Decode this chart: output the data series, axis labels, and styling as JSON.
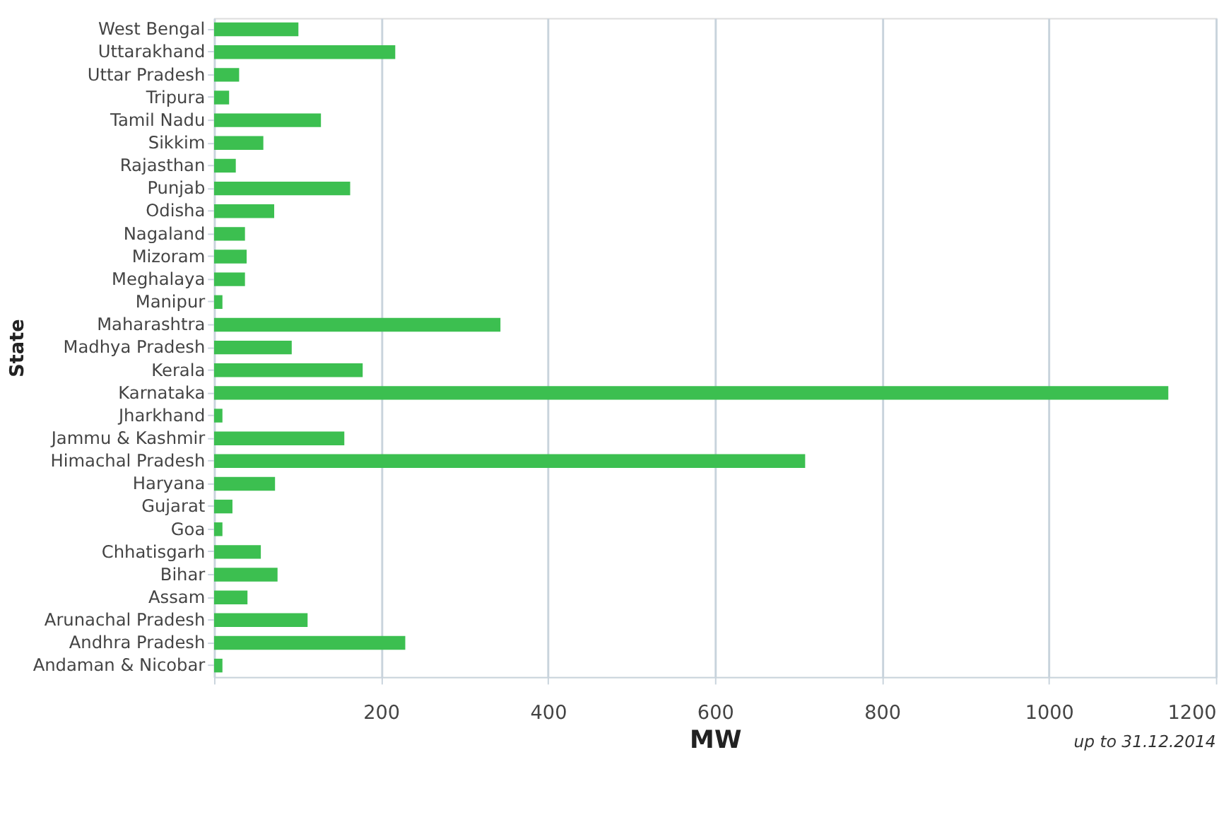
{
  "chart_data": {
    "type": "bar",
    "orientation": "horizontal",
    "xlabel": "MW",
    "ylabel": "State",
    "categories": [
      "West Bengal",
      "Uttarakhand",
      "Uttar Pradesh",
      "Tripura",
      "Tamil Nadu",
      "Sikkim",
      "Rajasthan",
      "Punjab",
      "Odisha",
      "Nagaland",
      "Mizoram",
      "Meghalaya",
      "Manipur",
      "Maharashtra",
      "Madhya Pradesh",
      "Kerala",
      "Karnataka",
      "Jharkhand",
      "Jammu & Kashmir",
      "Himachal Pradesh",
      "Haryana",
      "Gujarat",
      "Goa",
      "Chhatisgarh",
      "Bihar",
      "Assam",
      "Arunachal Pradesh",
      "Andhra Pradesh",
      "Andaman & Nicobar"
    ],
    "values": [
      101,
      217,
      30,
      18,
      128,
      59,
      26,
      163,
      72,
      37,
      39,
      37,
      10,
      343,
      93,
      178,
      1143,
      10,
      156,
      708,
      73,
      22,
      10,
      56,
      76,
      40,
      112,
      229,
      10
    ],
    "color": "#3cbf50",
    "xlim": [
      0,
      1200
    ],
    "xticks": [
      {
        "value": 0,
        "label": null
      },
      200,
      400,
      600,
      800,
      1000,
      1200
    ],
    "grid": "x",
    "annotations": [
      "up to 31.12.2014"
    ]
  }
}
